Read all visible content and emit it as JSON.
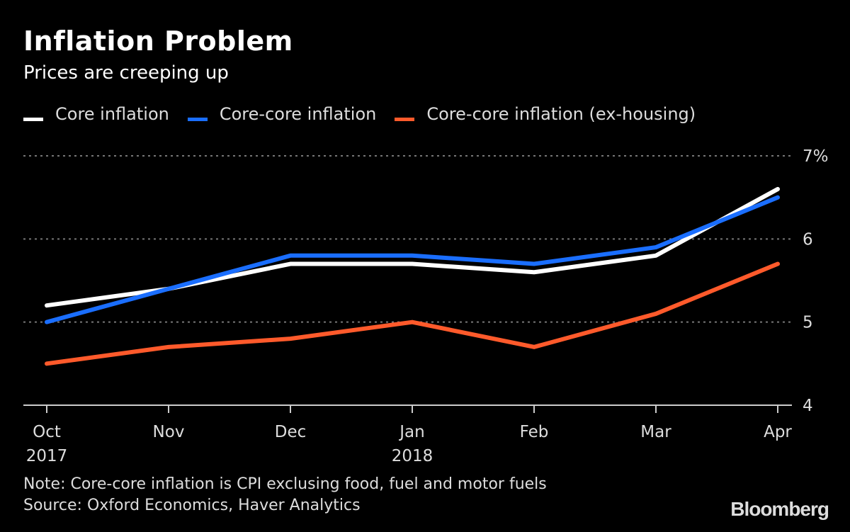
{
  "chart_data": {
    "type": "line",
    "title": "Inflation Problem",
    "subtitle": "Prices are creeping up",
    "xlabel": "",
    "ylabel": "",
    "x": [
      "Oct",
      "Nov",
      "Dec",
      "Jan",
      "Feb",
      "Mar",
      "Apr"
    ],
    "x_year_labels": [
      {
        "index": 0,
        "label": "2017"
      },
      {
        "index": 3,
        "label": "2018"
      }
    ],
    "ylim": [
      4,
      7
    ],
    "yticks": [
      4,
      5,
      6,
      7
    ],
    "ytick_labels": [
      "4",
      "5",
      "6",
      "7%"
    ],
    "grid": "horizontal-dotted",
    "legend_position": "top-left",
    "series": [
      {
        "name": "Core inflation",
        "color": "#ffffff",
        "values": [
          5.2,
          5.4,
          5.7,
          5.7,
          5.6,
          5.8,
          6.6
        ]
      },
      {
        "name": "Core-core inflation",
        "color": "#1a6eff",
        "values": [
          5.0,
          5.4,
          5.8,
          5.8,
          5.7,
          5.9,
          6.5
        ]
      },
      {
        "name": "Core-core inflation (ex-housing)",
        "color": "#ff5a2b",
        "values": [
          4.5,
          4.7,
          4.8,
          5.0,
          4.7,
          5.1,
          5.7
        ]
      }
    ]
  },
  "footer": {
    "note": "Note: Core-core inflation is CPI exclusing food, fuel and motor fuels",
    "source": "Source: Oxford Economics, Haver Analytics",
    "brand": "Bloomberg"
  }
}
